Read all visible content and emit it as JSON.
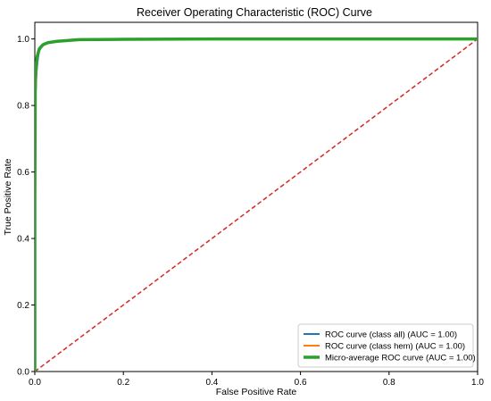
{
  "chart_data": {
    "type": "line",
    "title": "Receiver Operating Characteristic (ROC) Curve",
    "xlabel": "False Positive Rate",
    "ylabel": "True Positive Rate",
    "xlim": [
      0.0,
      1.0
    ],
    "ylim": [
      0.0,
      1.05
    ],
    "xticks": [
      "0.0",
      "0.2",
      "0.4",
      "0.6",
      "0.8",
      "1.0"
    ],
    "yticks": [
      "0.0",
      "0.2",
      "0.4",
      "0.6",
      "0.8",
      "1.0"
    ],
    "grid": false,
    "legend_position": "bottom-right",
    "series": [
      {
        "name": "ROC curve (class all) (AUC = 1.00)",
        "color": "#1f77b4",
        "style": "solid",
        "x": [
          0.0,
          0.0,
          0.002,
          0.004,
          0.006,
          0.008,
          0.01,
          0.015,
          0.02,
          0.03,
          0.05,
          0.08,
          0.1,
          0.2,
          0.4,
          0.6,
          0.8,
          1.0
        ],
        "y": [
          0.0,
          0.55,
          0.84,
          0.9,
          0.93,
          0.95,
          0.965,
          0.975,
          0.982,
          0.988,
          0.993,
          0.996,
          0.998,
          0.999,
          1.0,
          1.0,
          1.0,
          1.0
        ]
      },
      {
        "name": "ROC curve (class hem) (AUC = 1.00)",
        "color": "#ff7f0e",
        "style": "solid",
        "x": [
          0.0,
          0.0,
          0.002,
          0.004,
          0.006,
          0.008,
          0.01,
          0.015,
          0.02,
          0.03,
          0.05,
          0.08,
          0.1,
          0.2,
          0.4,
          0.6,
          0.8,
          1.0
        ],
        "y": [
          0.0,
          0.5,
          0.85,
          0.91,
          0.94,
          0.955,
          0.968,
          0.978,
          0.984,
          0.989,
          0.993,
          0.996,
          0.998,
          0.999,
          1.0,
          1.0,
          1.0,
          1.0
        ]
      },
      {
        "name": "Micro-average ROC curve (AUC = 1.00)",
        "color": "#2ca02c",
        "style": "solid-thick",
        "x": [
          0.0,
          0.0,
          0.001,
          0.003,
          0.005,
          0.008,
          0.01,
          0.015,
          0.02,
          0.03,
          0.05,
          0.08,
          0.1,
          0.2,
          0.4,
          0.6,
          0.8,
          1.0
        ],
        "y": [
          0.0,
          0.5,
          0.88,
          0.92,
          0.945,
          0.96,
          0.97,
          0.978,
          0.984,
          0.989,
          0.993,
          0.996,
          0.998,
          0.999,
          1.0,
          1.0,
          1.0,
          1.0
        ]
      },
      {
        "color": "#d62728",
        "style": "dashed",
        "x": [
          0.0,
          1.0
        ],
        "y": [
          0.0,
          1.0
        ]
      }
    ]
  }
}
